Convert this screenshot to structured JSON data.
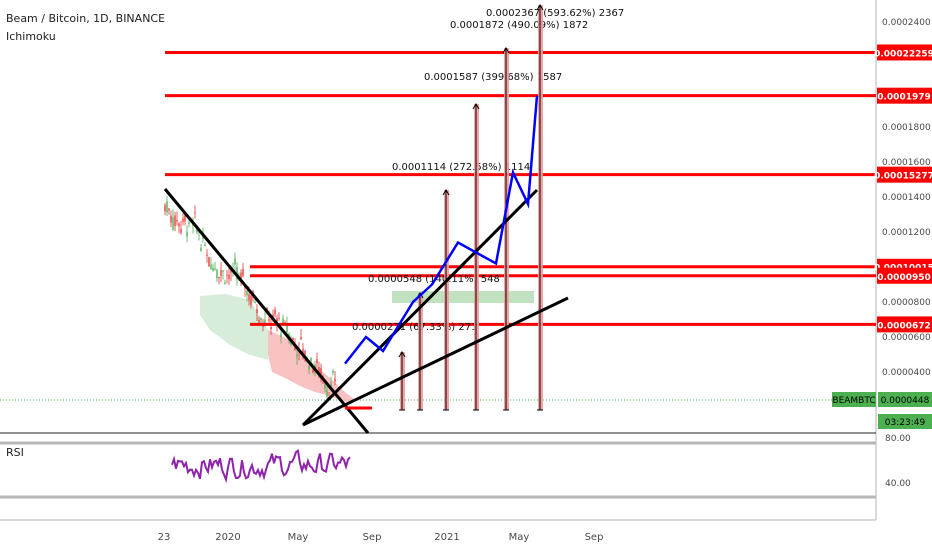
{
  "header": {
    "title": "Beam / Bitcoin, 1D, BINANCE",
    "indicator": "Ichimoku",
    "rsi_label": "RSI"
  },
  "colors": {
    "level_line": "#ff0000",
    "projection": "#0000ff",
    "trendline": "#000000",
    "candle_up": "#4caf50",
    "candle_down": "#e53935",
    "rsi_line": "#8e24aa",
    "price_tag": "#4caf50",
    "cloud": "#f8bbbb"
  },
  "chart_data": {
    "type": "line",
    "price_axis": {
      "ticks": [
        "0.0002400",
        "0.0002200",
        "0.0002000",
        "0.0001800",
        "0.0001600",
        "0.0001400",
        "0.0001200",
        "0.0001000",
        "0.0000800",
        "0.0000600",
        "0.0000400"
      ]
    },
    "time_axis": {
      "ticks": [
        "23",
        "2020",
        "May",
        "Sep",
        "2021",
        "May",
        "Sep"
      ]
    },
    "rsi_axis": {
      "ticks": [
        "80.00",
        "40.00"
      ]
    },
    "levels": [
      "0.00022259",
      "0.0001979",
      "0.00015277",
      "0.00010015",
      "0.0000950",
      "0.0000672"
    ],
    "projection_labels": [
      "0.0000271 (67.33%) 271",
      "0.0000548 (140.11%) 548",
      "0.0001114 (272.58%) 1114",
      "0.0001587 (399.68%) 1587",
      "0.0001872 (490.09%) 1872",
      "0.0002367 (593.62%) 2367"
    ],
    "current_price": {
      "symbol": "BEAMBTC",
      "price": "0.0000448",
      "countdown": "03:23:49"
    },
    "series": [
      {
        "values": [
          4.48e-05,
          6e-05,
          5.2e-05,
          8e-05,
          9e-05,
          0.000114,
          0.000102,
          0.000154,
          0.000136,
          0.0001979
        ]
      }
    ]
  }
}
